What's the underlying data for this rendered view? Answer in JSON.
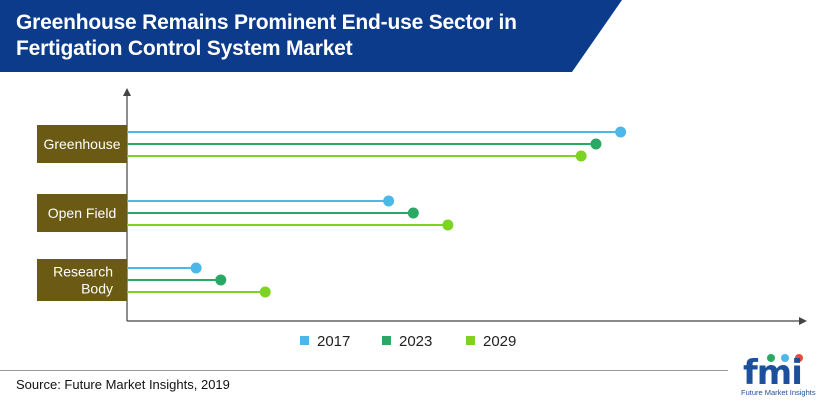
{
  "header": {
    "title": "Greenhouse Remains Prominent End-use Sector in Fertigation Control System Market",
    "background_color": "#0d3b8c"
  },
  "footer": {
    "source": "Source: Future Market Insights, 2019"
  },
  "logo": {
    "word": "fmi",
    "tagline": "Future Market Insights"
  },
  "chart_data": {
    "type": "bar",
    "orientation": "horizontal",
    "style": "lollipop",
    "title": "Greenhouse Remains Prominent End-use Sector in Fertigation Control System Market",
    "categories": [
      "Greenhouse",
      "Open Field",
      "Research Body"
    ],
    "series": [
      {
        "name": "2017",
        "color": "#4db8e8",
        "values": [
          100,
          53,
          14
        ]
      },
      {
        "name": "2023",
        "color": "#2aa865",
        "values": [
          95,
          58,
          19
        ]
      },
      {
        "name": "2029",
        "color": "#7dd321",
        "values": [
          92,
          65,
          28
        ]
      }
    ],
    "xlabel": "",
    "ylabel": "",
    "xlim": [
      0,
      110
    ],
    "axis_numbers_shown": false,
    "legend_position": "bottom-center",
    "category_label_color": "#6b5a14"
  }
}
